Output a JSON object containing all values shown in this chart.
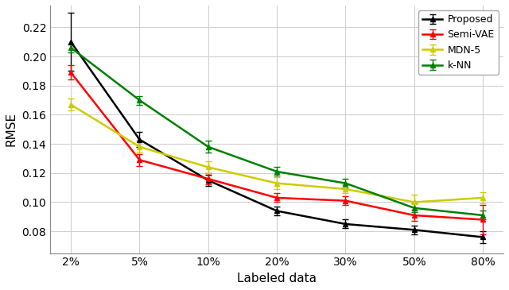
{
  "x_labels": [
    "2%",
    "5%",
    "10%",
    "20%",
    "30%",
    "50%",
    "80%"
  ],
  "x_values": [
    0,
    1,
    2,
    3,
    4,
    5,
    6
  ],
  "proposed": {
    "y": [
      0.21,
      0.143,
      0.115,
      0.094,
      0.085,
      0.081,
      0.076
    ],
    "yerr": [
      0.02,
      0.005,
      0.004,
      0.003,
      0.003,
      0.003,
      0.004
    ],
    "color": "#000000",
    "label": "Proposed",
    "marker": "^"
  },
  "semi_vae": {
    "y": [
      0.189,
      0.129,
      0.116,
      0.103,
      0.101,
      0.091,
      0.088
    ],
    "yerr": [
      0.005,
      0.004,
      0.004,
      0.003,
      0.003,
      0.004,
      0.01
    ],
    "color": "#ff0000",
    "label": "Semi-VAE",
    "marker": "^"
  },
  "mdn5": {
    "y": [
      0.167,
      0.138,
      0.124,
      0.113,
      0.109,
      0.1,
      0.103
    ],
    "yerr": [
      0.004,
      0.004,
      0.004,
      0.004,
      0.003,
      0.005,
      0.004
    ],
    "color": "#cccc00",
    "label": "MDN-5",
    "marker": "^"
  },
  "knn": {
    "y": [
      0.206,
      0.17,
      0.138,
      0.121,
      0.113,
      0.096,
      0.091
    ],
    "yerr": [
      0.003,
      0.003,
      0.004,
      0.003,
      0.003,
      0.003,
      0.003
    ],
    "color": "#008000",
    "label": "k-NN",
    "marker": "^"
  },
  "xlabel": "Labeled data",
  "ylabel": "RMSE",
  "ylim": [
    0.065,
    0.235
  ],
  "yticks": [
    0.08,
    0.1,
    0.12,
    0.14,
    0.16,
    0.18,
    0.2,
    0.22
  ],
  "grid_color": "#d0d0d0",
  "bg_color": "#ffffff"
}
